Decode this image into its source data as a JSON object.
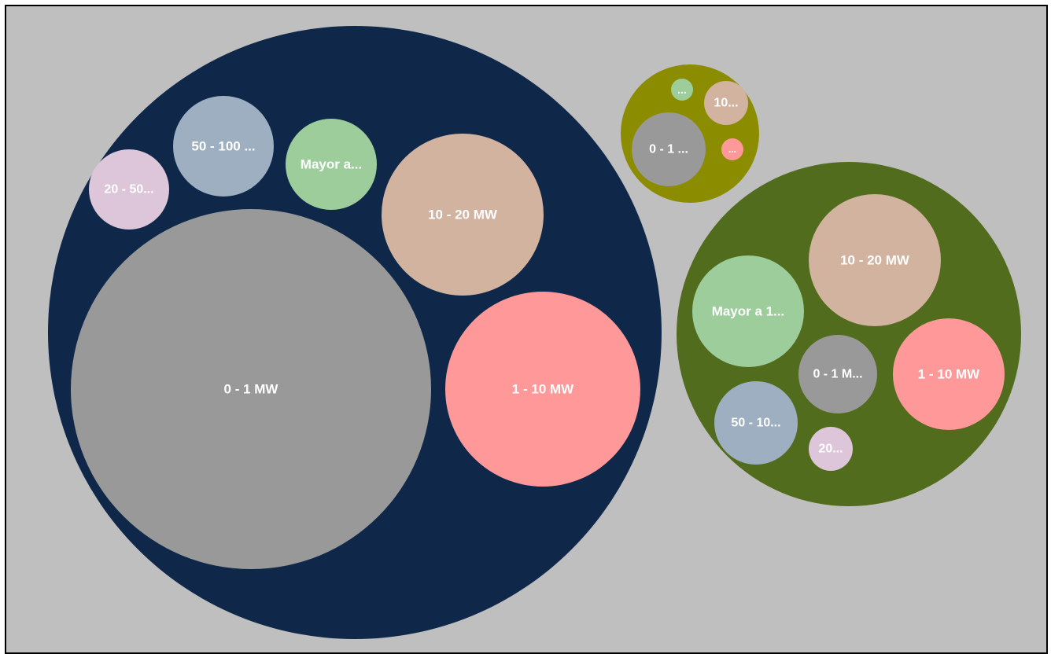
{
  "chart_data": {
    "type": "bubble-pack",
    "background": "#bfbfbf",
    "groups": [
      {
        "color": "#0f2849",
        "children": [
          {
            "label": "0 - 1 MW",
            "color": "#999999"
          },
          {
            "label": "1 - 10 MW",
            "color": "#ff9999"
          },
          {
            "label": "10 - 20 MW",
            "color": "#d1b3a0"
          },
          {
            "label": "Mayor a...",
            "color": "#9dcd9b"
          },
          {
            "label": "50 - 100 ...",
            "color": "#9dafc0"
          },
          {
            "label": "20 - 50...",
            "color": "#ddc6da"
          }
        ]
      },
      {
        "color": "#8c8c00",
        "children": [
          {
            "label": "0 - 1 ...",
            "color": "#999999"
          },
          {
            "label": "10...",
            "color": "#d1b3a0"
          },
          {
            "label": "...",
            "color": "#9dcd9b"
          },
          {
            "label": "...",
            "color": "#ff9999"
          }
        ]
      },
      {
        "color": "#516c1c",
        "children": [
          {
            "label": "10 - 20 MW",
            "color": "#d1b3a0"
          },
          {
            "label": "Mayor a 1...",
            "color": "#9dcd9b"
          },
          {
            "label": "1 - 10 MW",
            "color": "#ff9999"
          },
          {
            "label": "0 - 1 M...",
            "color": "#999999"
          },
          {
            "label": "50 - 10...",
            "color": "#9dafc0"
          },
          {
            "label": "20...",
            "color": "#ddc6da"
          }
        ]
      }
    ]
  }
}
